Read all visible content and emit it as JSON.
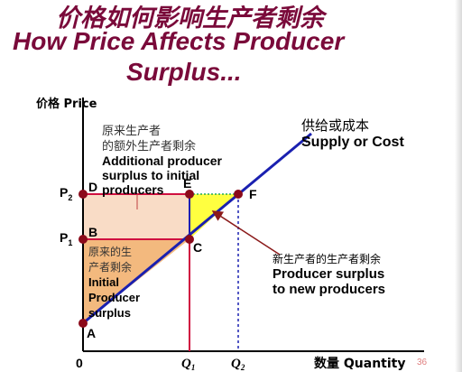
{
  "slide": {
    "title_cn": "价格如何影响生产者剩余",
    "title_en_line1": "How Price Affects Producer",
    "title_en_line2": "Surplus...",
    "page_number": "36"
  },
  "axes": {
    "y_label": "价格 Price",
    "x_label": "数量 Quantity",
    "origin": "0",
    "p2": "P",
    "p2_sub": "2",
    "p1": "P",
    "p1_sub": "1",
    "q1": "Q",
    "q1_sub": "1",
    "q2": "Q",
    "q2_sub": "2"
  },
  "points": {
    "a": "A",
    "b": "B",
    "c": "C",
    "d": "D",
    "e": "E",
    "f": "F"
  },
  "annotations": {
    "supply_cn": "供给或成本",
    "supply_en": "Supply or Cost",
    "additional_cn_1": "原来生产者",
    "additional_cn_2": "的额外生产者剩余",
    "additional_en_1": "Additional producer",
    "additional_en_2": "surplus to initial",
    "additional_en_3": "producers",
    "initial_cn_1": "原来的生",
    "initial_cn_2": "产者剩余",
    "initial_en_1": "Initial",
    "initial_en_2": "Producer",
    "initial_en_3": "surplus",
    "new_cn": "新生产者的生产者剩余",
    "new_en_1": "Producer surplus",
    "new_en_2": "to new producers"
  },
  "colors": {
    "supply_line": "#1a20b0",
    "price_lines": "#d01040",
    "initial_region": "#f3b97e",
    "additional_region": "#f9dcc6",
    "new_region": "#ffff40",
    "point": "#8b0a1a"
  }
}
